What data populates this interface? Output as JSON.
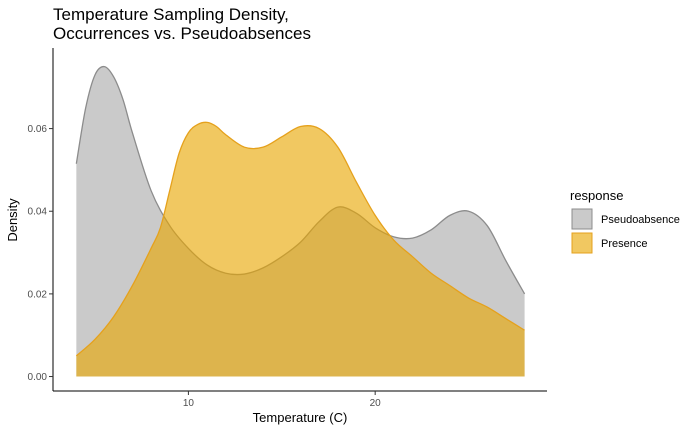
{
  "chart_data": {
    "type": "area",
    "title_lines": [
      "Temperature Sampling Density,",
      "Occurrences vs. Pseudoabsences"
    ],
    "xlabel": "Temperature (C)",
    "ylabel": "Density",
    "xlim": [
      2.75,
      29.2
    ],
    "ylim": [
      -0.0035,
      0.0795
    ],
    "x_ticks": [
      10,
      20
    ],
    "x_tick_labels": [
      "10",
      "20"
    ],
    "y_ticks": [
      0,
      0.02,
      0.04,
      0.06
    ],
    "y_tick_labels": [
      "0.00",
      "0.02",
      "0.04",
      "0.06"
    ],
    "grid": false,
    "legend": {
      "title": "response",
      "placement": "right"
    },
    "series": [
      {
        "name": "Pseudoabsence",
        "fill": "#a9a9a9",
        "stroke": "#8c8c8c",
        "x": [
          4,
          4.5,
          5,
          5.5,
          6,
          6.5,
          7,
          8,
          9,
          10,
          11,
          12,
          13,
          14,
          15,
          16,
          17,
          18,
          19,
          20,
          21,
          22,
          23,
          24,
          25,
          26,
          27,
          28
        ],
        "values": [
          0.0515,
          0.065,
          0.073,
          0.075,
          0.0725,
          0.067,
          0.059,
          0.045,
          0.0365,
          0.031,
          0.027,
          0.025,
          0.0248,
          0.0263,
          0.029,
          0.0325,
          0.0375,
          0.041,
          0.0395,
          0.036,
          0.0338,
          0.0335,
          0.0355,
          0.039,
          0.04,
          0.0365,
          0.028,
          0.02
        ]
      },
      {
        "name": "Presence",
        "fill": "#e8a600",
        "stroke": "#e5a11c",
        "x": [
          4,
          5,
          6,
          7,
          8,
          8.5,
          9,
          9.5,
          10,
          10.5,
          11,
          11.5,
          12,
          13,
          14,
          15,
          16,
          17,
          18,
          19,
          20,
          21,
          22,
          23,
          24,
          25,
          26,
          27,
          28
        ],
        "values": [
          0.005,
          0.009,
          0.0145,
          0.022,
          0.031,
          0.036,
          0.045,
          0.054,
          0.059,
          0.061,
          0.0615,
          0.0605,
          0.0585,
          0.0555,
          0.0555,
          0.058,
          0.0605,
          0.06,
          0.0555,
          0.047,
          0.039,
          0.033,
          0.029,
          0.025,
          0.022,
          0.019,
          0.0168,
          0.014,
          0.0112
        ]
      }
    ]
  }
}
